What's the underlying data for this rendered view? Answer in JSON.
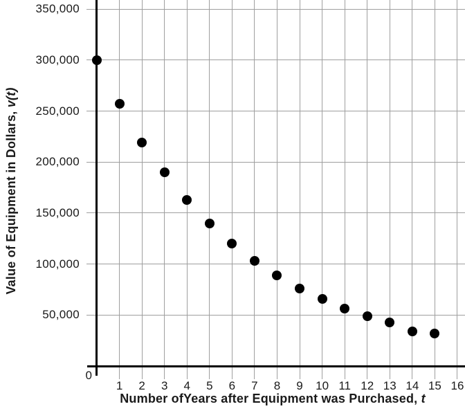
{
  "chart_data": {
    "type": "scatter",
    "xlabel": "Number ofYears after Equipment was Purchased, t",
    "xlabel_text": "Number ofYears after Equipment was Purchased, ",
    "xlabel_var": "t",
    "ylabel": "Value of Equipment in Dollars, v(t)",
    "ylabel_text": "Value of Equipment in Dollars, ",
    "ylabel_var": "v(t)",
    "x": [
      0,
      1,
      2,
      3,
      4,
      5,
      6,
      7,
      8,
      9,
      10,
      11,
      12,
      13,
      14,
      15
    ],
    "values": [
      300000,
      257000,
      219000,
      190000,
      163000,
      140000,
      120000,
      103000,
      89000,
      76000,
      66000,
      56000,
      49000,
      43000,
      34000,
      32000
    ],
    "xlim": [
      0,
      16
    ],
    "ylim": [
      0,
      360000
    ],
    "grid": true,
    "legend": false,
    "x_tick_values": [
      1,
      2,
      3,
      4,
      5,
      6,
      7,
      8,
      9,
      10,
      11,
      12,
      13,
      14,
      15,
      16
    ],
    "x_tick_labels": [
      "1",
      "2",
      "3",
      "4",
      "5",
      "6",
      "7",
      "8",
      "9",
      "10",
      "11",
      "12",
      "13",
      "14",
      "15",
      "16"
    ],
    "y_ticks": [
      {
        "value": 50000,
        "label": "50,000"
      },
      {
        "value": 100000,
        "label": "100,000"
      },
      {
        "value": 150000,
        "label": "150,000"
      },
      {
        "value": 200000,
        "label": "200,000"
      },
      {
        "value": 250000,
        "label": "250,000"
      },
      {
        "value": 300000,
        "label": "300,000"
      },
      {
        "value": 350000,
        "label": "350,000"
      }
    ],
    "origin_label": "0",
    "colors": {
      "point": "#000000",
      "axis": "#000000",
      "grid": "#9e9e9e",
      "text": "#1a1a1a",
      "background": "#ffffff"
    }
  }
}
